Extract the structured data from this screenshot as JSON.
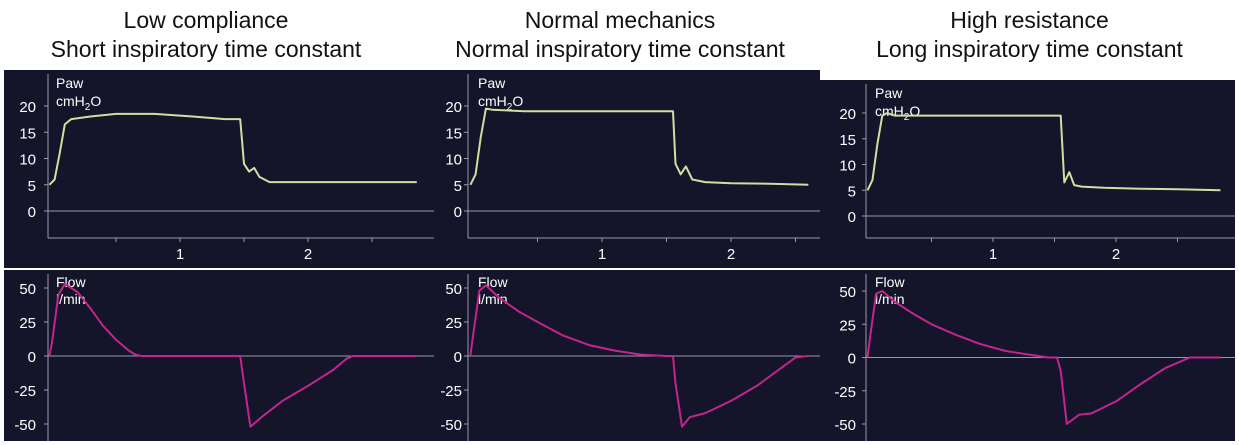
{
  "colors": {
    "background": "#14142a",
    "pressure_trace": "#d7dca0",
    "flow_trace": "#c2268c",
    "axis": "#9a9aa8",
    "label": "#ffffff"
  },
  "chart_data": [
    {
      "type": "line",
      "panel": "Low compliance",
      "title": "Low compliance",
      "subtitle": "Short inspiratory time constant",
      "pressure": {
        "label": "Paw",
        "unit": "cmH",
        "unit_sub": "2",
        "unit_suffix": "O",
        "yticks": [
          0,
          5,
          10,
          15,
          20
        ],
        "xticks": [
          1,
          2
        ],
        "xlim": [
          -0.02,
          2.85
        ],
        "ylim": [
          -6,
          24
        ],
        "series": [
          {
            "x": [
              -0.02,
              0.02,
              0.06,
              0.1,
              0.15,
              0.3,
              0.5,
              0.8,
              1.1,
              1.35,
              1.47,
              1.5,
              1.54,
              1.58,
              1.62,
              1.7,
              1.9,
              2.2,
              2.5,
              2.85
            ],
            "y": [
              5,
              6,
              11,
              16.5,
              17.5,
              18,
              18.5,
              18.5,
              18,
              17.5,
              17.5,
              9,
              7.5,
              8.2,
              6.5,
              5.5,
              5.5,
              5.5,
              5.5,
              5.5
            ]
          }
        ]
      },
      "flow": {
        "label": "Flow",
        "unit": "l/min",
        "yticks": [
          -50,
          -25,
          0,
          25,
          50
        ],
        "xlim": [
          -0.02,
          2.85
        ],
        "ylim": [
          -55,
          62
        ],
        "series": [
          {
            "x": [
              -0.02,
              0.0,
              0.05,
              0.1,
              0.2,
              0.3,
              0.4,
              0.5,
              0.6,
              0.65,
              0.7,
              1.47,
              1.5,
              1.55,
              1.65,
              1.8,
              2.0,
              2.2,
              2.3,
              2.35,
              2.85
            ],
            "y": [
              0,
              10,
              45,
              53,
              47,
              35,
              22,
              12,
              4,
              1,
              0,
              0,
              -20,
              -52,
              -44,
              -33,
              -22,
              -10,
              -2,
              0,
              0
            ]
          }
        ]
      }
    },
    {
      "type": "line",
      "panel": "Normal mechanics",
      "title": "Normal mechanics",
      "subtitle": "Normal inspiratory time constant",
      "pressure": {
        "label": "Paw",
        "unit": "cmH",
        "unit_sub": "2",
        "unit_suffix": "O",
        "yticks": [
          0,
          5,
          10,
          15,
          20
        ],
        "xticks": [
          1,
          2
        ],
        "xlim": [
          -0.02,
          2.6
        ],
        "ylim": [
          -6,
          24
        ],
        "series": [
          {
            "x": [
              -0.02,
              0.02,
              0.06,
              0.1,
              0.15,
              0.4,
              0.8,
              1.2,
              1.5,
              1.55,
              1.57,
              1.61,
              1.65,
              1.7,
              1.8,
              2.0,
              2.3,
              2.6
            ],
            "y": [
              5,
              7,
              14,
              19.5,
              19.3,
              19,
              19,
              19,
              19,
              19,
              9,
              7,
              8.5,
              6,
              5.5,
              5.3,
              5.2,
              5
            ]
          }
        ]
      },
      "flow": {
        "label": "Flow",
        "unit": "l/min",
        "yticks": [
          -50,
          -25,
          0,
          25,
          50
        ],
        "xlim": [
          -0.02,
          2.6
        ],
        "ylim": [
          -55,
          62
        ],
        "series": [
          {
            "x": [
              -0.02,
              0.0,
              0.05,
              0.1,
              0.2,
              0.35,
              0.5,
              0.7,
              0.9,
              1.1,
              1.3,
              1.5,
              1.55,
              1.57,
              1.62,
              1.68,
              1.8,
              2.0,
              2.2,
              2.4,
              2.5,
              2.6
            ],
            "y": [
              0,
              15,
              48,
              52,
              43,
              33,
              25,
              15,
              8,
              4,
              1,
              0,
              0,
              -20,
              -52,
              -45,
              -42,
              -33,
              -22,
              -8,
              -1,
              0
            ]
          }
        ]
      }
    },
    {
      "type": "line",
      "panel": "High resistance",
      "title": "High resistance",
      "subtitle": "Long inspiratory time constant",
      "pressure": {
        "label": "Paw",
        "unit": "cmH",
        "unit_sub": "2",
        "unit_suffix": "O",
        "yticks": [
          0,
          5,
          10,
          15,
          20
        ],
        "xticks": [
          1,
          2
        ],
        "xlim": [
          -0.02,
          2.85
        ],
        "ylim": [
          -6,
          24
        ],
        "series": [
          {
            "x": [
              -0.02,
              0.02,
              0.06,
              0.1,
              0.14,
              0.2,
              0.3,
              0.6,
              1.0,
              1.4,
              1.52,
              1.55,
              1.58,
              1.62,
              1.66,
              1.72,
              1.9,
              2.2,
              2.5,
              2.85
            ],
            "y": [
              5,
              7,
              14,
              19.5,
              20,
              19.5,
              19.5,
              19.5,
              19.5,
              19.5,
              19.5,
              19.5,
              6.5,
              8.5,
              6,
              5.7,
              5.5,
              5.3,
              5.2,
              5
            ]
          }
        ]
      },
      "flow": {
        "label": "Flow",
        "unit": "l/min",
        "yticks": [
          -50,
          -25,
          0,
          25,
          50
        ],
        "xlim": [
          -0.02,
          2.85
        ],
        "ylim": [
          -55,
          62
        ],
        "series": [
          {
            "x": [
              -0.02,
              0.0,
              0.05,
              0.1,
              0.2,
              0.35,
              0.5,
              0.7,
              0.9,
              1.1,
              1.3,
              1.45,
              1.52,
              1.55,
              1.6,
              1.7,
              1.8,
              2.0,
              2.2,
              2.4,
              2.6,
              2.85
            ],
            "y": [
              0,
              15,
              48,
              50,
              42,
              33,
              25,
              17,
              10,
              5,
              2,
              0,
              0,
              -10,
              -50,
              -43,
              -42,
              -33,
              -20,
              -8,
              0,
              0
            ]
          }
        ]
      }
    }
  ]
}
